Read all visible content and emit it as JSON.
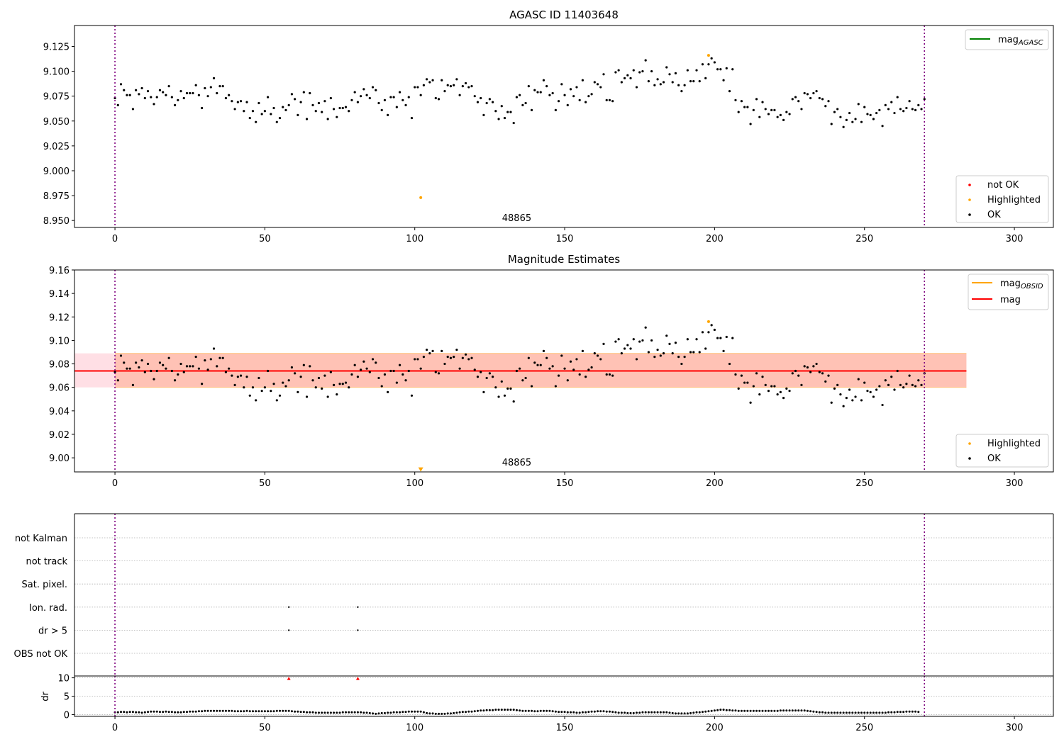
{
  "chart_data": [
    {
      "type": "scatter",
      "title": "AGASC ID 11403648",
      "xlim": [
        -13.5,
        313
      ],
      "ylim": [
        8.943,
        9.146
      ],
      "xticks": [
        "0",
        "50",
        "100",
        "150",
        "200",
        "250",
        "300"
      ],
      "yticks": [
        "8.950",
        "8.975",
        "9.000",
        "9.025",
        "9.050",
        "9.075",
        "9.100",
        "9.125"
      ],
      "vlines_x": [
        0,
        270
      ],
      "annotation": "48865",
      "annotation_x": 134,
      "legend_lines": [
        {
          "label": "mag",
          "sub": "AGASC",
          "color": "#008000"
        }
      ],
      "legend_points": [
        {
          "label": "not OK",
          "color": "#ff0000"
        },
        {
          "label": "Highlighted",
          "color": "#ffa500"
        },
        {
          "label": "OK",
          "color": "#000000"
        }
      ],
      "highlighted": [
        {
          "x": 102,
          "y": 8.973
        },
        {
          "x": 198,
          "y": 9.116
        }
      ],
      "ok_y": [
        9.073,
        9.066,
        9.087,
        9.081,
        9.076,
        9.076,
        9.062,
        9.081,
        9.077,
        9.083,
        9.073,
        9.08,
        9.074,
        9.067,
        9.074,
        9.081,
        9.079,
        9.076,
        9.085,
        9.074,
        9.066,
        9.071,
        9.08,
        9.073,
        9.078,
        9.078,
        9.078,
        9.086,
        9.076,
        9.063,
        9.083,
        9.075,
        9.084,
        9.093,
        9.078,
        9.085,
        9.085,
        9.073,
        9.076,
        9.07,
        9.062,
        9.069,
        9.07,
        9.06,
        9.069,
        9.053,
        9.06,
        9.049,
        9.068,
        9.057,
        9.06,
        9.074,
        9.057,
        9.063,
        9.049,
        9.053,
        9.064,
        9.061,
        9.066,
        9.077,
        9.072,
        9.056,
        9.069,
        9.079,
        9.052,
        9.078,
        9.066,
        9.06,
        9.068,
        9.059,
        9.07,
        9.052,
        9.073,
        9.062,
        9.054,
        9.063,
        9.063,
        9.064,
        9.06,
        9.071,
        9.079,
        9.069,
        9.075,
        9.082,
        9.076,
        9.073,
        9.084,
        9.081,
        9.068,
        9.061,
        9.071,
        9.056,
        9.074,
        9.074,
        9.064,
        9.079,
        9.071,
        9.066,
        9.074,
        9.053,
        9.084,
        9.084,
        9.076,
        9.086,
        9.092,
        9.089,
        9.091,
        9.073,
        9.072,
        9.091,
        9.08,
        9.086,
        9.085,
        9.086,
        9.092,
        9.076,
        9.085,
        9.088,
        9.084,
        9.085,
        9.075,
        9.069,
        9.073,
        9.056,
        9.068,
        9.072,
        9.069,
        9.06,
        9.052,
        9.065,
        9.053,
        9.059,
        9.059,
        9.048,
        9.074,
        9.076,
        9.066,
        9.068,
        9.085,
        9.061,
        9.081,
        9.079,
        9.079,
        9.091,
        9.085,
        9.076,
        9.078,
        9.061,
        9.07,
        9.087,
        9.076,
        9.066,
        9.082,
        9.075,
        9.084,
        9.071,
        9.091,
        9.069,
        9.075,
        9.077,
        9.089,
        9.087,
        9.084,
        9.097,
        9.071,
        9.071,
        9.07,
        9.099,
        9.101,
        9.089,
        9.093,
        9.096,
        9.093,
        9.101,
        9.084,
        9.099,
        9.1,
        9.111,
        9.09,
        9.1,
        9.086,
        9.092,
        9.087,
        9.089,
        9.104,
        9.097,
        9.089,
        9.098,
        9.086,
        9.08,
        9.086,
        9.101,
        9.09,
        9.09,
        9.101,
        9.09,
        9.107,
        9.093,
        9.107,
        9.113,
        9.109,
        9.102,
        9.102,
        9.091,
        9.103,
        9.08,
        9.102,
        9.071,
        9.059,
        9.07,
        9.064,
        9.064,
        9.047,
        9.061,
        9.072,
        9.054,
        9.069,
        9.062,
        9.057,
        9.061,
        9.061,
        9.054,
        9.056,
        9.051,
        9.059,
        9.057,
        9.072,
        9.074,
        9.07,
        9.062,
        9.078,
        9.077,
        9.073,
        9.078,
        9.08,
        9.073,
        9.072,
        9.065,
        9.07,
        9.047,
        9.059,
        9.062,
        9.054,
        9.044,
        9.051,
        9.058,
        9.049,
        9.052,
        9.067,
        9.049,
        9.064,
        9.057,
        9.056,
        9.052,
        9.058,
        9.061,
        9.045,
        9.066,
        9.062,
        9.069,
        9.058,
        9.074,
        9.062,
        9.06,
        9.063,
        9.07,
        9.062,
        9.061,
        9.066,
        9.062,
        9.072
      ]
    },
    {
      "type": "scatter",
      "title": "Magnitude Estimates",
      "xlim": [
        -13.5,
        313
      ],
      "ylim": [
        8.988,
        9.16
      ],
      "xticks": [
        "0",
        "50",
        "100",
        "150",
        "200",
        "250",
        "300"
      ],
      "yticks": [
        "9.00",
        "9.02",
        "9.04",
        "9.06",
        "9.08",
        "9.10",
        "9.12",
        "9.14",
        "9.16"
      ],
      "vlines_x": [
        0,
        270
      ],
      "annotation": "48865",
      "annotation_x": 134,
      "mag_mean": 9.074,
      "band_outer": {
        "x0": -13.5,
        "x1": 284,
        "y0": 9.06,
        "y1": 9.089,
        "color": "#ffc0cb"
      },
      "band_inner": {
        "x0": 0,
        "x1": 284,
        "y0": 9.06,
        "y1": 9.089,
        "color": "#ffa07a"
      },
      "legend_lines": [
        {
          "label": "mag",
          "sub": "OBSID",
          "color": "#ffa500"
        },
        {
          "label": "mag",
          "sub": "",
          "color": "#ff0000"
        }
      ],
      "legend_points": [
        {
          "label": "Highlighted",
          "color": "#ffa500"
        },
        {
          "label": "OK",
          "color": "#000000"
        }
      ],
      "highlighted": [
        {
          "x": 198,
          "y": 9.116
        }
      ],
      "clipped_marker": {
        "x": 102,
        "y": 8.99
      }
    },
    {
      "type": "scatter",
      "categories": [
        "not Kalman",
        "not track",
        "Sat. pixel.",
        "Ion. rad.",
        "dr > 5",
        "OBS not OK"
      ],
      "xlim": [
        -13.5,
        313
      ],
      "vlines_x": [
        0,
        270
      ],
      "flags": [
        {
          "category": "Ion. rad.",
          "x": [
            58,
            81
          ]
        },
        {
          "category": "dr > 5",
          "x": [
            58,
            81
          ]
        }
      ]
    },
    {
      "type": "scatter",
      "ylabel": "dr",
      "xlim": [
        -13.5,
        313
      ],
      "ylim": [
        -0.5,
        10.5
      ],
      "xticks": [
        "0",
        "50",
        "100",
        "150",
        "200",
        "250",
        "300"
      ],
      "yticks": [
        "0",
        "5",
        "10"
      ],
      "vlines_x": [
        0,
        270
      ],
      "outliers": [
        {
          "x": 58,
          "y": 9.8
        },
        {
          "x": 81,
          "y": 9.8
        }
      ],
      "dr_y": [
        0.6,
        0.6,
        0.7,
        0.7,
        0.6,
        0.7,
        0.7,
        0.6,
        0.6,
        0.5,
        0.6,
        0.7,
        0.8,
        0.8,
        0.8,
        0.7,
        0.7,
        0.8,
        0.7,
        0.7,
        0.6,
        0.6,
        0.6,
        0.7,
        0.7,
        0.8,
        0.8,
        0.8,
        0.9,
        0.9,
        1.0,
        1.0,
        1.0,
        1.0,
        1.0,
        1.0,
        1.0,
        1.0,
        1.0,
        1.0,
        0.9,
        0.9,
        0.9,
        0.9,
        1.0,
        0.9,
        0.9,
        0.9,
        0.9,
        0.9,
        0.9,
        0.9,
        0.9,
        0.9,
        1.0,
        1.0,
        1.0,
        1.0,
        1.0,
        0.9,
        0.8,
        0.8,
        0.7,
        0.7,
        0.6,
        0.6,
        0.6,
        0.5,
        0.5,
        0.5,
        0.5,
        0.5,
        0.5,
        0.5,
        0.5,
        0.5,
        0.6,
        0.6,
        0.6,
        0.6,
        0.6,
        0.6,
        0.6,
        0.5,
        0.5,
        0.4,
        0.3,
        0.2,
        0.3,
        0.4,
        0.4,
        0.5,
        0.5,
        0.6,
        0.6,
        0.6,
        0.7,
        0.7,
        0.8,
        0.8,
        0.8,
        0.8,
        0.8,
        0.6,
        0.4,
        0.3,
        0.3,
        0.2,
        0.2,
        0.2,
        0.2,
        0.3,
        0.3,
        0.4,
        0.5,
        0.6,
        0.7,
        0.7,
        0.8,
        0.8,
        0.9,
        1.0,
        1.1,
        1.1,
        1.2,
        1.2,
        1.2,
        1.3,
        1.3,
        1.3,
        1.3,
        1.3,
        1.3,
        1.3,
        1.2,
        1.1,
        1.0,
        1.0,
        1.0,
        1.0,
        0.9,
        0.9,
        1.0,
        1.0,
        1.0,
        1.0,
        0.9,
        0.8,
        0.7,
        0.7,
        0.7,
        0.6,
        0.6,
        0.6,
        0.5,
        0.5,
        0.6,
        0.6,
        0.7,
        0.8,
        0.8,
        0.9,
        0.9,
        0.9,
        0.8,
        0.8,
        0.7,
        0.6,
        0.5,
        0.5,
        0.5,
        0.4,
        0.4,
        0.4,
        0.5,
        0.5,
        0.6,
        0.6,
        0.6,
        0.6,
        0.6,
        0.6,
        0.6,
        0.6,
        0.6,
        0.5,
        0.4,
        0.3,
        0.3,
        0.3,
        0.3,
        0.3,
        0.4,
        0.5,
        0.6,
        0.6,
        0.7,
        0.8,
        0.9,
        1.0,
        1.1,
        1.2,
        1.3,
        1.3,
        1.2,
        1.2,
        1.1,
        1.1,
        1.0,
        1.0,
        1.0,
        1.0,
        1.0,
        1.0,
        1.0,
        1.0,
        1.0,
        1.0,
        1.0,
        1.0,
        1.0,
        1.0,
        1.1,
        1.1,
        1.1,
        1.1,
        1.1,
        1.1,
        1.1,
        1.1,
        1.1,
        1.0,
        0.9,
        0.8,
        0.7,
        0.6,
        0.6,
        0.5,
        0.5,
        0.5,
        0.5,
        0.5,
        0.5,
        0.5,
        0.5,
        0.5,
        0.5,
        0.5,
        0.5,
        0.5,
        0.5,
        0.5,
        0.5,
        0.5,
        0.5,
        0.5,
        0.5,
        0.5,
        0.6,
        0.6,
        0.6,
        0.7,
        0.7,
        0.7,
        0.8,
        0.8,
        0.8,
        0.8,
        0.7
      ]
    }
  ]
}
